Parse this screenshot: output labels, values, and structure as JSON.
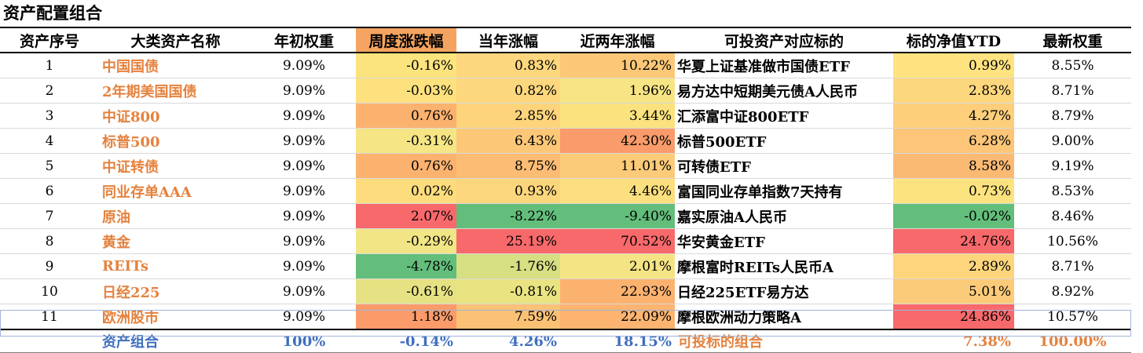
{
  "title": "资产配置组合",
  "columns": [
    "资产序号",
    "大类资产名称",
    "年初权重",
    "周度涨跌幅",
    "当年涨幅",
    "近两年涨幅",
    "可投资产对应标的",
    "标的净值YTD",
    "最新权重"
  ],
  "header_highlight_color": "#f4a460",
  "rows": [
    {
      "idx": "1",
      "name": "中国国债",
      "w0": "9.09%",
      "weekly": "-0.16%",
      "ytd": "0.83%",
      "two_year": "10.22%",
      "target": "华夏上证基准做市国债ETF",
      "nav_ytd": "0.99%",
      "latest": "8.55%",
      "colors": {
        "weekly": "#fbe47e",
        "ytd": "#fcd77d",
        "two_year": "#fcc878",
        "nav_ytd": "#fee380"
      }
    },
    {
      "idx": "2",
      "name": "2年期美国国债",
      "w0": "9.09%",
      "weekly": "-0.03%",
      "ytd": "0.82%",
      "two_year": "1.96%",
      "target": "易方达中短期美元债A人民币",
      "nav_ytd": "2.83%",
      "latest": "8.71%",
      "colors": {
        "weekly": "#fde17f",
        "ytd": "#fcd77d",
        "two_year": "#f7e484",
        "nav_ytd": "#fdd77d"
      }
    },
    {
      "idx": "3",
      "name": "中证800",
      "w0": "9.09%",
      "weekly": "0.76%",
      "ytd": "2.85%",
      "two_year": "3.44%",
      "target": "汇添富中证800ETF",
      "nav_ytd": "4.27%",
      "latest": "8.79%",
      "colors": {
        "weekly": "#fcb26f",
        "ytd": "#fdd37c",
        "two_year": "#fbe27f",
        "nav_ytd": "#fdcf7b"
      }
    },
    {
      "idx": "4",
      "name": "标普500",
      "w0": "9.09%",
      "weekly": "-0.31%",
      "ytd": "6.43%",
      "two_year": "42.30%",
      "target": "标普500ETF",
      "nav_ytd": "6.28%",
      "latest": "9.00%",
      "colors": {
        "weekly": "#f5e585",
        "ytd": "#fcc878",
        "two_year": "#f99b6a",
        "nav_ytd": "#fcc578"
      }
    },
    {
      "idx": "5",
      "name": "中证转债",
      "w0": "9.09%",
      "weekly": "0.76%",
      "ytd": "8.75%",
      "two_year": "11.01%",
      "target": "可转债ETF",
      "nav_ytd": "8.58%",
      "latest": "9.19%",
      "colors": {
        "weekly": "#fcb26f",
        "ytd": "#fcbc74",
        "two_year": "#fccb79",
        "nav_ytd": "#fbba73"
      }
    },
    {
      "idx": "6",
      "name": "同业存单AAA",
      "w0": "9.09%",
      "weekly": "0.02%",
      "ytd": "0.93%",
      "two_year": "4.46%",
      "target": "富国同业存单指数7天持有",
      "nav_ytd": "0.73%",
      "latest": "8.53%",
      "colors": {
        "weekly": "#fddc7e",
        "ytd": "#fcd67c",
        "two_year": "#fcdf7e",
        "nav_ytd": "#fde380"
      }
    },
    {
      "idx": "7",
      "name": "原油",
      "w0": "9.09%",
      "weekly": "2.07%",
      "ytd": "-8.22%",
      "two_year": "-9.40%",
      "target": "嘉实原油A人民币",
      "nav_ytd": "-0.02%",
      "latest": "8.46%",
      "colors": {
        "weekly": "#f8696b",
        "ytd": "#63be7b",
        "two_year": "#63be7b",
        "nav_ytd": "#63be7b"
      }
    },
    {
      "idx": "8",
      "name": "黄金",
      "w0": "9.09%",
      "weekly": "-0.29%",
      "ytd": "25.19%",
      "two_year": "70.52%",
      "target": "华安黄金ETF",
      "nav_ytd": "24.76%",
      "latest": "10.56%",
      "colors": {
        "weekly": "#f1e586",
        "ytd": "#f8696b",
        "two_year": "#f8696b",
        "nav_ytd": "#f8696b"
      }
    },
    {
      "idx": "9",
      "name": "REITs",
      "w0": "9.09%",
      "weekly": "-4.78%",
      "ytd": "-1.76%",
      "two_year": "2.01%",
      "target": "摩根富时REITs人民币A",
      "nav_ytd": "2.89%",
      "latest": "8.71%",
      "colors": {
        "weekly": "#63be7b",
        "ytd": "#d6df82",
        "two_year": "#f5e484",
        "nav_ytd": "#fdd57c"
      }
    },
    {
      "idx": "10",
      "name": "日经225",
      "w0": "9.09%",
      "weekly": "-0.61%",
      "ytd": "-0.81%",
      "two_year": "22.93%",
      "target": "日经225ETF易方达",
      "nav_ytd": "5.01%",
      "latest": "8.92%",
      "colors": {
        "weekly": "#e6e283",
        "ytd": "#e9e382",
        "two_year": "#fcb26f",
        "nav_ytd": "#fccb79"
      }
    },
    {
      "idx": "11",
      "name": "欧洲股市",
      "w0": "9.09%",
      "weekly": "1.18%",
      "ytd": "7.59%",
      "two_year": "22.09%",
      "target": "摩根欧洲动力策略A",
      "nav_ytd": "24.86%",
      "latest": "10.57%",
      "colors": {
        "weekly": "#fb9b6a",
        "ytd": "#fbc276",
        "two_year": "#fcb470",
        "nav_ytd": "#f8696b"
      }
    }
  ],
  "footer": {
    "name": "资产组合",
    "w0": "100%",
    "weekly": "-0.14%",
    "ytd": "4.26%",
    "two_year": "18.15%",
    "target": "可投标的组合",
    "nav_ytd": "7.38%",
    "latest": "100.00%"
  }
}
